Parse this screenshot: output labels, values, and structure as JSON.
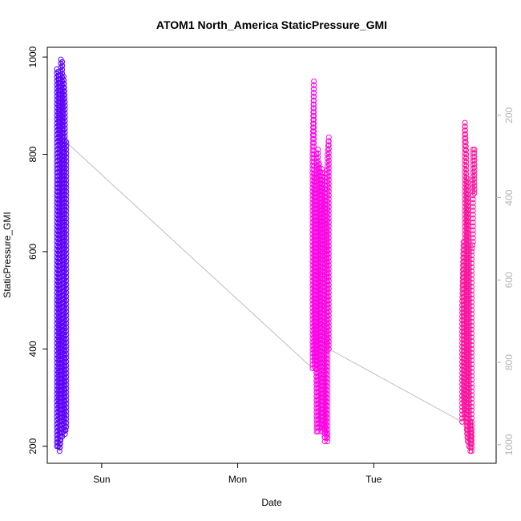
{
  "chart_data": {
    "type": "scatter",
    "title": "ATOM1 North_America StaticPressure_GMI",
    "xlabel": "Date",
    "ylabel": "StaticPressure_GMI",
    "x_ticks": [
      {
        "label": "Sun",
        "value": 0
      },
      {
        "label": "Mon",
        "value": 1
      },
      {
        "label": "Tue",
        "value": 2
      }
    ],
    "xlim": [
      -0.4,
      2.9
    ],
    "ylim": [
      165,
      1020
    ],
    "y_ticks": [
      200,
      400,
      600,
      800,
      1000
    ],
    "y2_ticks": [
      200,
      400,
      600,
      800,
      1000
    ],
    "y2_note": "right axis is reversed (altitude profile, 200 at top, 1000 at bottom)",
    "y2lim": [
      1045,
      35
    ],
    "colors": {
      "start": "#5000ff",
      "middle": "#ff00ff",
      "end": "#ff1493",
      "line": "#bebebe"
    },
    "series": [
      {
        "points": [
          [
            -0.33,
            975
          ],
          [
            -0.33,
            880
          ],
          [
            -0.33,
            700
          ],
          [
            -0.33,
            500
          ],
          [
            -0.33,
            300
          ],
          [
            -0.33,
            200
          ],
          [
            -0.32,
            200
          ],
          [
            -0.32,
            400
          ],
          [
            -0.32,
            650
          ],
          [
            -0.32,
            900
          ],
          [
            -0.32,
            970
          ],
          [
            -0.31,
            940
          ],
          [
            -0.31,
            700
          ],
          [
            -0.31,
            450
          ],
          [
            -0.31,
            250
          ],
          [
            -0.31,
            190
          ],
          [
            -0.3,
            220
          ],
          [
            -0.3,
            500
          ],
          [
            -0.3,
            800
          ],
          [
            -0.3,
            995
          ],
          [
            -0.29,
            990
          ],
          [
            -0.29,
            700
          ],
          [
            -0.29,
            400
          ],
          [
            -0.29,
            220
          ],
          [
            -0.28,
            230
          ],
          [
            -0.28,
            550
          ],
          [
            -0.28,
            850
          ],
          [
            -0.28,
            960
          ],
          [
            -0.27,
            900
          ],
          [
            -0.27,
            600
          ],
          [
            -0.27,
            300
          ],
          [
            -0.27,
            225
          ],
          [
            -0.26,
            240
          ],
          [
            -0.26,
            500
          ],
          [
            -0.26,
            700
          ],
          [
            -0.26,
            825
          ]
        ]
      },
      {
        "points": [
          [
            1.55,
            360
          ],
          [
            1.55,
            500
          ],
          [
            1.55,
            700
          ],
          [
            1.55,
            800
          ],
          [
            1.56,
            950
          ],
          [
            1.56,
            800
          ],
          [
            1.56,
            600
          ],
          [
            1.56,
            400
          ],
          [
            1.57,
            360
          ],
          [
            1.57,
            560
          ],
          [
            1.57,
            760
          ],
          [
            1.58,
            230
          ],
          [
            1.58,
            400
          ],
          [
            1.58,
            600
          ],
          [
            1.58,
            800
          ],
          [
            1.59,
            810
          ],
          [
            1.59,
            600
          ],
          [
            1.59,
            400
          ],
          [
            1.59,
            230
          ],
          [
            1.6,
            240
          ],
          [
            1.6,
            450
          ],
          [
            1.6,
            700
          ],
          [
            1.6,
            780
          ],
          [
            1.61,
            600
          ],
          [
            1.61,
            420
          ],
          [
            1.61,
            260
          ],
          [
            1.62,
            230
          ],
          [
            1.62,
            450
          ],
          [
            1.62,
            670
          ],
          [
            1.62,
            770
          ],
          [
            1.63,
            700
          ],
          [
            1.63,
            480
          ],
          [
            1.63,
            260
          ],
          [
            1.64,
            210
          ],
          [
            1.64,
            400
          ],
          [
            1.64,
            600
          ],
          [
            1.64,
            760
          ],
          [
            1.65,
            620
          ],
          [
            1.65,
            420
          ],
          [
            1.65,
            230
          ],
          [
            1.66,
            210
          ],
          [
            1.66,
            420
          ],
          [
            1.66,
            640
          ],
          [
            1.66,
            800
          ],
          [
            1.67,
            835
          ],
          [
            1.67,
            700
          ],
          [
            1.67,
            500
          ],
          [
            1.67,
            400
          ]
        ]
      },
      {
        "points": [
          [
            2.65,
            250
          ],
          [
            2.65,
            350
          ],
          [
            2.65,
            490
          ],
          [
            2.66,
            620
          ],
          [
            2.66,
            450
          ],
          [
            2.66,
            300
          ],
          [
            2.67,
            260
          ],
          [
            2.67,
            500
          ],
          [
            2.67,
            700
          ],
          [
            2.67,
            865
          ],
          [
            2.68,
            800
          ],
          [
            2.68,
            600
          ],
          [
            2.68,
            400
          ],
          [
            2.68,
            250
          ],
          [
            2.69,
            210
          ],
          [
            2.69,
            400
          ],
          [
            2.69,
            600
          ],
          [
            2.69,
            750
          ],
          [
            2.7,
            620
          ],
          [
            2.7,
            420
          ],
          [
            2.7,
            200
          ],
          [
            2.71,
            190
          ],
          [
            2.71,
            220
          ],
          [
            2.71,
            250
          ],
          [
            2.72,
            190
          ],
          [
            2.72,
            250
          ],
          [
            2.72,
            400
          ],
          [
            2.72,
            600
          ],
          [
            2.73,
            620
          ],
          [
            2.73,
            700
          ],
          [
            2.73,
            810
          ],
          [
            2.74,
            810
          ],
          [
            2.74,
            750
          ],
          [
            2.74,
            720
          ]
        ]
      }
    ]
  }
}
